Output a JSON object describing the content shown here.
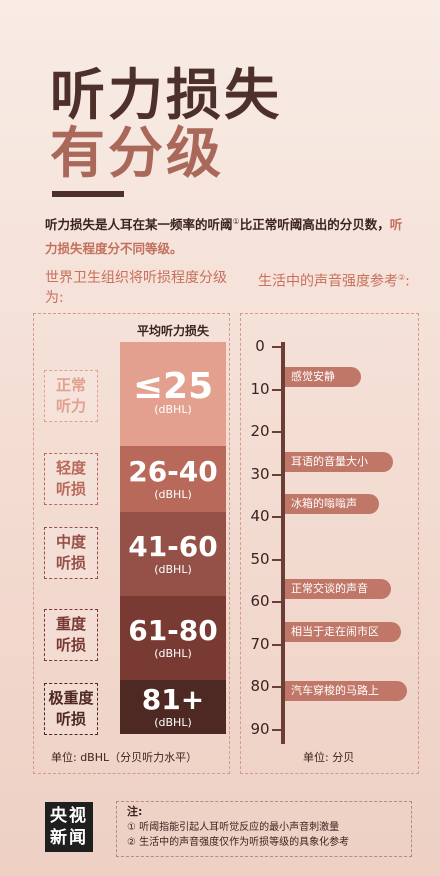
{
  "title": {
    "line1": "听力损失",
    "line2": "有分级"
  },
  "intro": {
    "part1": "听力损失是人耳在某一频率的听阈",
    "note_mark": "①",
    "part2": "比正常听阈高出的分贝数，",
    "part3": "听力损失程度分不同等级。"
  },
  "left_heading": "世界卫生组织将听损程度分级为:",
  "right_heading": {
    "text": "生活中的声音强度参考",
    "note_mark": "②",
    "suffix": ":"
  },
  "grading": {
    "column_header": "平均听力损失",
    "unit_label": "单位: dBHL（分贝听力水平）",
    "levels": [
      {
        "label_line1": "正常",
        "label_line2": "听力",
        "value": "≤25",
        "unit": "(dBHL)",
        "color": "#e3a08e"
      },
      {
        "label_line1": "轻度",
        "label_line2": "听损",
        "value": "26-40",
        "unit": "(dBHL)",
        "color": "#b9695a"
      },
      {
        "label_line1": "中度",
        "label_line2": "听损",
        "value": "41-60",
        "unit": "(dBHL)",
        "color": "#955047"
      },
      {
        "label_line1": "重度",
        "label_line2": "听损",
        "value": "61-80",
        "unit": "(dBHL)",
        "color": "#7a3a34"
      },
      {
        "label_line1": "极重度",
        "label_line2": "听损",
        "value": "81+",
        "unit": "(dBHL)",
        "color": "#4e2823"
      }
    ]
  },
  "sound_scale": {
    "min": 0,
    "max": 90,
    "ticks": [
      "0",
      "10",
      "20",
      "30",
      "40",
      "50",
      "60",
      "70",
      "80",
      "90"
    ],
    "unit_label": "单位: 分贝",
    "markers": [
      {
        "db": 7,
        "label": "感觉安静"
      },
      {
        "db": 27,
        "label": "耳语的音量大小"
      },
      {
        "db": 37,
        "label": "冰箱的嗡嗡声"
      },
      {
        "db": 57,
        "label": "正常交谈的声音"
      },
      {
        "db": 67,
        "label": "相当于走在闹市区"
      },
      {
        "db": 81,
        "label": "汽车穿梭的马路上"
      }
    ]
  },
  "logo": {
    "line1": "央视",
    "line2": "新闻"
  },
  "notes": {
    "title": "注:",
    "items": [
      "① 听阈指能引起人耳听觉反应的最小声音刺激量",
      "② 生活中的声音强度仅作为听损等级的具象化参考"
    ]
  }
}
